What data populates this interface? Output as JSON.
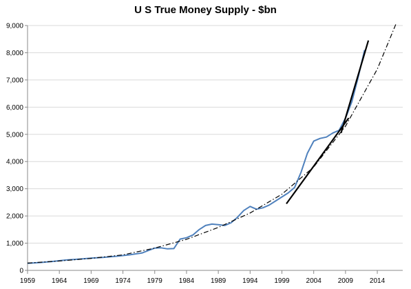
{
  "chart_data": {
    "type": "line",
    "title": "U S True Money Supply - $bn",
    "xlabel": "",
    "ylabel": "",
    "xlim": [
      1959,
      2018
    ],
    "ylim": [
      0,
      9000
    ],
    "x_ticks": [
      "1959",
      "1964",
      "1969",
      "1974",
      "1979",
      "1984",
      "1989",
      "1994",
      "1999",
      "2004",
      "2009",
      "2014"
    ],
    "y_ticks": [
      "0",
      "1,000",
      "2,000",
      "3,000",
      "4,000",
      "5,000",
      "6,000",
      "7,000",
      "8,000",
      "9,000"
    ],
    "grid": "horizontal",
    "legend": "none",
    "series": [
      {
        "style": "solid-blue",
        "color": "#4f81bd",
        "points": [
          [
            1959,
            260
          ],
          [
            1961,
            290
          ],
          [
            1963,
            330
          ],
          [
            1965,
            380
          ],
          [
            1967,
            410
          ],
          [
            1969,
            450
          ],
          [
            1971,
            480
          ],
          [
            1973,
            520
          ],
          [
            1975,
            570
          ],
          [
            1977,
            640
          ],
          [
            1978,
            730
          ],
          [
            1979,
            820
          ],
          [
            1980,
            830
          ],
          [
            1981,
            790
          ],
          [
            1982,
            800
          ],
          [
            1983,
            1150
          ],
          [
            1984,
            1200
          ],
          [
            1985,
            1300
          ],
          [
            1986,
            1500
          ],
          [
            1987,
            1650
          ],
          [
            1988,
            1700
          ],
          [
            1989,
            1680
          ],
          [
            1990,
            1650
          ],
          [
            1991,
            1750
          ],
          [
            1992,
            1950
          ],
          [
            1993,
            2200
          ],
          [
            1994,
            2350
          ],
          [
            1995,
            2250
          ],
          [
            1996,
            2300
          ],
          [
            1997,
            2400
          ],
          [
            1998,
            2550
          ],
          [
            1999,
            2700
          ],
          [
            2000,
            2850
          ],
          [
            2001,
            3050
          ],
          [
            2002,
            3600
          ],
          [
            2003,
            4300
          ],
          [
            2004,
            4750
          ],
          [
            2005,
            4850
          ],
          [
            2006,
            4900
          ],
          [
            2007,
            5050
          ],
          [
            2008,
            5150
          ],
          [
            2009,
            5600
          ],
          [
            2010,
            6200
          ],
          [
            2011,
            7100
          ],
          [
            2012,
            8100
          ]
        ]
      },
      {
        "style": "dash-dot-black",
        "color": "#000000",
        "points": [
          [
            1959,
            270
          ],
          [
            1964,
            345
          ],
          [
            1969,
            440
          ],
          [
            1974,
            570
          ],
          [
            1979,
            820
          ],
          [
            1984,
            1140
          ],
          [
            1989,
            1580
          ],
          [
            1994,
            2110
          ],
          [
            1999,
            2800
          ],
          [
            2004,
            3800
          ],
          [
            2009,
            5300
          ],
          [
            2014,
            7400
          ],
          [
            2017,
            9100
          ]
        ]
      },
      {
        "style": "solid-black",
        "color": "#000000",
        "points": [
          [
            1999.7,
            2450
          ],
          [
            2009.5,
            5600
          ]
        ]
      },
      {
        "style": "solid-black",
        "color": "#000000",
        "points": [
          [
            2008.3,
            5050
          ],
          [
            2012.6,
            8450
          ]
        ]
      }
    ]
  }
}
